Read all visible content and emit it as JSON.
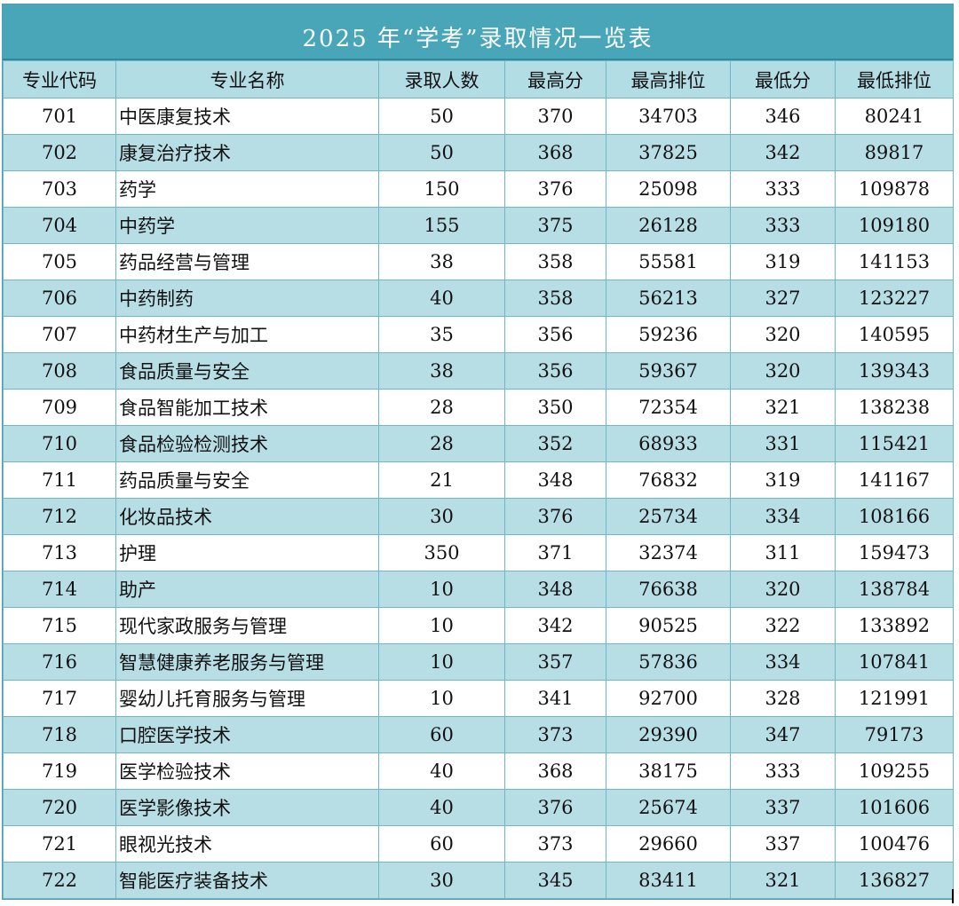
{
  "title": "2025 年“学考”录取情况一览表",
  "headers": [
    "专业代码",
    "专业名称",
    "录取人数",
    "最高分",
    "最高排位",
    "最低分",
    "最低排位"
  ],
  "colors": {
    "title_bg": "#48a6b8",
    "header_bg": "#b3dde5",
    "stripe_bg": "#b7dde5",
    "border": "#6fb7c6"
  },
  "rows": [
    [
      "701",
      "中医康复技术",
      "50",
      "370",
      "34703",
      "346",
      "80241"
    ],
    [
      "702",
      "康复治疗技术",
      "50",
      "368",
      "37825",
      "342",
      "89817"
    ],
    [
      "703",
      "药学",
      "150",
      "376",
      "25098",
      "333",
      "109878"
    ],
    [
      "704",
      "中药学",
      "155",
      "375",
      "26128",
      "333",
      "109180"
    ],
    [
      "705",
      "药品经营与管理",
      "38",
      "358",
      "55581",
      "319",
      "141153"
    ],
    [
      "706",
      "中药制药",
      "40",
      "358",
      "56213",
      "327",
      "123227"
    ],
    [
      "707",
      "中药材生产与加工",
      "35",
      "356",
      "59236",
      "320",
      "140595"
    ],
    [
      "708",
      "食品质量与安全",
      "38",
      "356",
      "59367",
      "320",
      "139343"
    ],
    [
      "709",
      "食品智能加工技术",
      "28",
      "350",
      "72354",
      "321",
      "138238"
    ],
    [
      "710",
      "食品检验检测技术",
      "28",
      "352",
      "68933",
      "331",
      "115421"
    ],
    [
      "711",
      "药品质量与安全",
      "21",
      "348",
      "76832",
      "319",
      "141167"
    ],
    [
      "712",
      "化妆品技术",
      "30",
      "376",
      "25734",
      "334",
      "108166"
    ],
    [
      "713",
      "护理",
      "350",
      "371",
      "32374",
      "311",
      "159473"
    ],
    [
      "714",
      "助产",
      "10",
      "348",
      "76638",
      "320",
      "138784"
    ],
    [
      "715",
      "现代家政服务与管理",
      "10",
      "342",
      "90525",
      "322",
      "133892"
    ],
    [
      "716",
      "智慧健康养老服务与管理",
      "10",
      "357",
      "57836",
      "334",
      "107841"
    ],
    [
      "717",
      "婴幼儿托育服务与管理",
      "10",
      "341",
      "92700",
      "328",
      "121991"
    ],
    [
      "718",
      "口腔医学技术",
      "60",
      "373",
      "29390",
      "347",
      "79173"
    ],
    [
      "719",
      "医学检验技术",
      "40",
      "368",
      "38175",
      "333",
      "109255"
    ],
    [
      "720",
      "医学影像技术",
      "40",
      "376",
      "25674",
      "337",
      "101606"
    ],
    [
      "721",
      "眼视光技术",
      "60",
      "373",
      "29660",
      "337",
      "100476"
    ],
    [
      "722",
      "智能医疗装备技术",
      "30",
      "345",
      "83411",
      "321",
      "136827"
    ]
  ]
}
